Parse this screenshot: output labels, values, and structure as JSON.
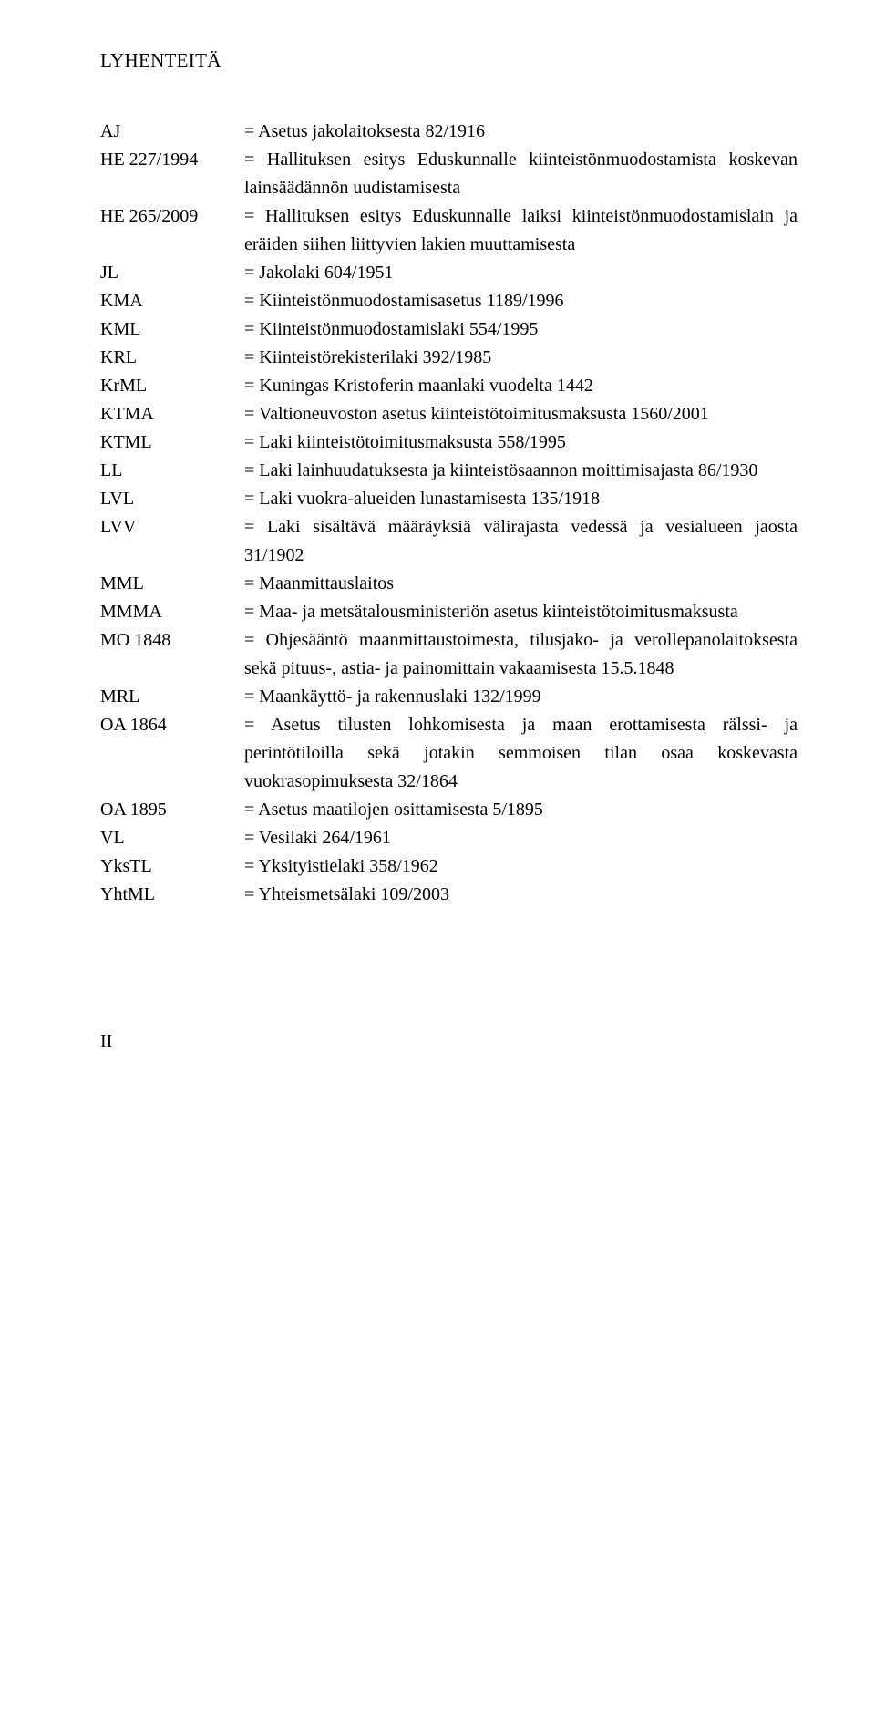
{
  "heading": "LYHENTEITÄ",
  "page_number": "II",
  "entries": [
    {
      "abbr": "AJ",
      "def": "= Asetus jakolaitoksesta 82/1916"
    },
    {
      "abbr": "HE 227/1994",
      "def": "= Hallituksen esitys Eduskunnalle kiinteistönmuodostamista koskevan lainsäädännön uudistamisesta",
      "justify": true
    },
    {
      "abbr": "HE 265/2009",
      "def": "= Hallituksen esitys Eduskunnalle laiksi kiinteistönmuodostamislain ja eräiden siihen liittyvien lakien muuttamisesta",
      "justify": true
    },
    {
      "abbr": "JL",
      "def": "= Jakolaki 604/1951"
    },
    {
      "abbr": "KMA",
      "def": "= Kiinteistönmuodostamisasetus 1189/1996"
    },
    {
      "abbr": "KML",
      "def": "= Kiinteistönmuodostamislaki 554/1995"
    },
    {
      "abbr": "KRL",
      "def": "= Kiinteistörekisterilaki 392/1985"
    },
    {
      "abbr": "KrML",
      "def": "= Kuningas Kristoferin maanlaki vuodelta 1442"
    },
    {
      "abbr": "KTMA",
      "def": "= Valtioneuvoston asetus kiinteistötoimitusmaksusta 1560/2001",
      "justify": true
    },
    {
      "abbr": "KTML",
      "def": "= Laki kiinteistötoimitusmaksusta 558/1995"
    },
    {
      "abbr": "LL",
      "def": "= Laki lainhuudatuksesta ja kiinteistösaannon moittimisajasta 86/1930",
      "justify": true
    },
    {
      "abbr": "LVL",
      "def": "= Laki vuokra-alueiden lunastamisesta 135/1918"
    },
    {
      "abbr": "LVV",
      "def": "= Laki sisältävä määräyksiä välirajasta vedessä ja vesialueen jaosta 31/1902",
      "justify": true
    },
    {
      "abbr": "MML",
      "def": "= Maanmittauslaitos"
    },
    {
      "abbr": "MMMA",
      "def": "= Maa- ja metsätalousministeriön asetus kiinteistötoimitusmaksusta",
      "justify": true
    },
    {
      "abbr": "MO 1848",
      "def": "= Ohjesääntö maanmittaustoimesta, tilusjako- ja verollepanolaitoksesta sekä pituus-, astia- ja painomittain vakaamisesta 15.5.1848",
      "justify": true
    },
    {
      "abbr": "MRL",
      "def": "= Maankäyttö- ja rakennuslaki 132/1999"
    },
    {
      "abbr": "OA 1864",
      "def": "= Asetus tilusten lohkomisesta ja maan erottamisesta rälssi- ja perintötiloilla sekä jotakin semmoisen tilan osaa koskevasta vuokrasopimuksesta 32/1864",
      "justify": true
    },
    {
      "abbr": "OA 1895",
      "def": "= Asetus maatilojen osittamisesta 5/1895"
    },
    {
      "abbr": "VL",
      "def": "= Vesilaki 264/1961"
    },
    {
      "abbr": "YksTL",
      "def": "= Yksityistielaki 358/1962"
    },
    {
      "abbr": "YhtML",
      "def": "= Yhteismetsälaki 109/2003"
    }
  ]
}
